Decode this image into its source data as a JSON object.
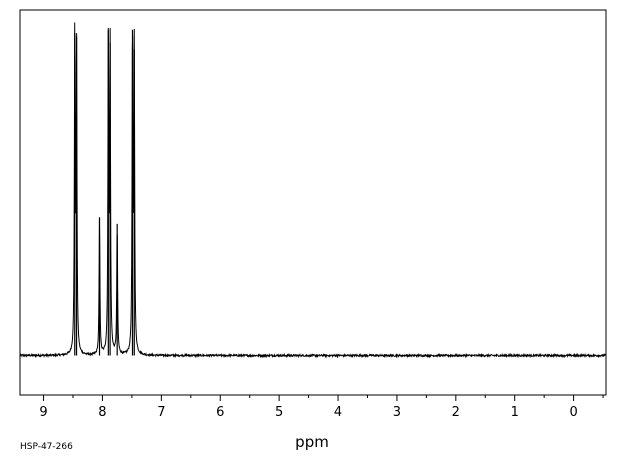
{
  "chart_data": {
    "type": "line",
    "title": "",
    "xlabel": "ppm",
    "ylabel": "",
    "xlim": [
      9.4,
      -0.55
    ],
    "ylim": [
      -0.12,
      1.05
    ],
    "x_reversed": true,
    "x_ticks": [
      9,
      8,
      7,
      6,
      5,
      4,
      3,
      2,
      1,
      0
    ],
    "x_tick_labels": [
      "9",
      "8",
      "7",
      "6",
      "5",
      "4",
      "3",
      "2",
      "1",
      "0"
    ],
    "grid": false,
    "legend": "none",
    "line_color": "#000000",
    "series": [
      {
        "peaks": [
          {
            "x": 8.47,
            "height": 0.98,
            "width": 0.008
          },
          {
            "x": 8.44,
            "height": 0.97,
            "width": 0.008
          },
          {
            "x": 8.05,
            "height": 0.42,
            "width": 0.008
          },
          {
            "x": 7.9,
            "height": 0.99,
            "width": 0.008
          },
          {
            "x": 7.87,
            "height": 0.95,
            "width": 0.008
          },
          {
            "x": 7.75,
            "height": 0.4,
            "width": 0.008
          },
          {
            "x": 7.49,
            "height": 0.99,
            "width": 0.008
          },
          {
            "x": 7.46,
            "height": 0.93,
            "width": 0.008
          }
        ]
      }
    ],
    "footnote": "HSP-47-266"
  }
}
